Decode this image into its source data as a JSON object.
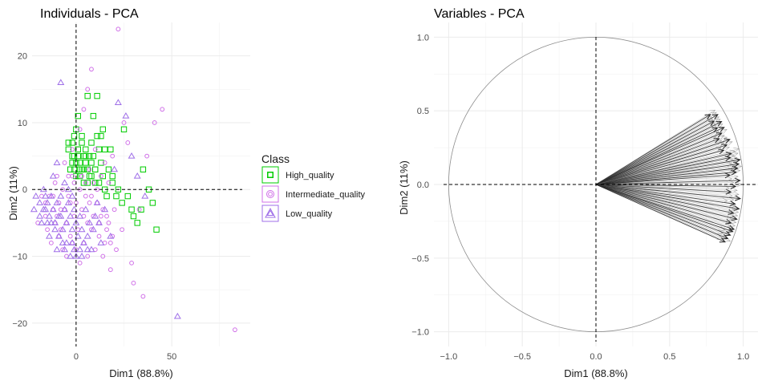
{
  "chart_data": [
    {
      "type": "scatter",
      "title": "Individuals - PCA",
      "xlabel": "Dim1 (88.8%)",
      "ylabel": "Dim2 (11%)",
      "xlim": [
        -23,
        91
      ],
      "ylim": [
        -23.5,
        25
      ],
      "xticks": [
        0,
        50
      ],
      "yticks": [
        -20,
        -10,
        0,
        10,
        20
      ],
      "grid": true,
      "reference_lines": {
        "x": 0,
        "y": 0
      },
      "legend": {
        "title": "Class",
        "placement": "right",
        "entries": [
          {
            "label": "High_quality",
            "color": "#00CC00",
            "shape": "square"
          },
          {
            "label": "Intermediate_quality",
            "color": "#D070E8",
            "shape": "circle"
          },
          {
            "label": "Low_quality",
            "color": "#9F6FE8",
            "shape": "triangle"
          }
        ]
      },
      "series": [
        {
          "name": "High_quality",
          "color": "#00CC00",
          "shape": "square",
          "points": [
            [
              -4,
              7
            ],
            [
              -4,
              6
            ],
            [
              -2,
              7
            ],
            [
              -2,
              5
            ],
            [
              -1,
              8
            ],
            [
              0,
              9
            ],
            [
              1,
              6
            ],
            [
              1,
              5
            ],
            [
              2,
              4
            ],
            [
              2,
              3
            ],
            [
              3,
              7
            ],
            [
              4,
              5
            ],
            [
              5,
              4
            ],
            [
              5,
              6
            ],
            [
              6,
              3
            ],
            [
              7,
              2
            ],
            [
              8,
              7
            ],
            [
              8,
              4
            ],
            [
              9,
              5
            ],
            [
              10,
              3
            ],
            [
              11,
              14
            ],
            [
              12,
              1
            ],
            [
              13,
              8
            ],
            [
              14,
              2
            ],
            [
              15,
              0
            ],
            [
              16,
              -1
            ],
            [
              18,
              6
            ],
            [
              19,
              1
            ],
            [
              21,
              -1
            ],
            [
              22,
              0
            ],
            [
              24,
              -2
            ],
            [
              25,
              9
            ],
            [
              27,
              -1
            ],
            [
              29,
              -3
            ],
            [
              30,
              -4
            ],
            [
              32,
              -5
            ],
            [
              34,
              -3
            ],
            [
              35,
              3
            ],
            [
              38,
              0
            ],
            [
              40,
              -2
            ],
            [
              42,
              -6
            ],
            [
              -3,
              3
            ],
            [
              -1,
              3
            ],
            [
              0,
              2
            ],
            [
              2,
              2
            ],
            [
              4,
              1
            ],
            [
              6,
              1
            ],
            [
              8,
              2
            ],
            [
              10,
              1
            ],
            [
              12,
              6
            ],
            [
              14,
              9
            ],
            [
              9,
              11
            ],
            [
              6,
              14
            ],
            [
              0,
              4
            ],
            [
              -2,
              4
            ],
            [
              1,
              6
            ],
            [
              3,
              3
            ],
            [
              5,
              5
            ],
            [
              7,
              5
            ],
            [
              11,
              8
            ],
            [
              13,
              4
            ],
            [
              15,
              6
            ],
            [
              17,
              3
            ],
            [
              19,
              2
            ],
            [
              3,
              8
            ],
            [
              1,
              11
            ],
            [
              -1,
              5
            ],
            [
              4,
              3
            ],
            [
              10,
              3
            ]
          ]
        },
        {
          "name": "Intermediate_quality",
          "color": "#D070E8",
          "shape": "circle",
          "points": [
            [
              -20,
              -5
            ],
            [
              -16,
              -2
            ],
            [
              -14,
              -1
            ],
            [
              -12,
              -3
            ],
            [
              -11,
              1
            ],
            [
              -10,
              -4
            ],
            [
              -9,
              -2
            ],
            [
              -8,
              -6
            ],
            [
              -7,
              0
            ],
            [
              -6,
              -3
            ],
            [
              -5,
              -5
            ],
            [
              -4,
              -1
            ],
            [
              -3,
              -7
            ],
            [
              -2,
              2
            ],
            [
              -1,
              -4
            ],
            [
              0,
              -2
            ],
            [
              1,
              -6
            ],
            [
              2,
              0
            ],
            [
              3,
              -3
            ],
            [
              4,
              -8
            ],
            [
              5,
              1
            ],
            [
              6,
              -5
            ],
            [
              7,
              3
            ],
            [
              8,
              -1
            ],
            [
              9,
              -4
            ],
            [
              10,
              6
            ],
            [
              11,
              -2
            ],
            [
              12,
              -7
            ],
            [
              13,
              2
            ],
            [
              14,
              -3
            ],
            [
              15,
              4
            ],
            [
              16,
              -6
            ],
            [
              17,
              1
            ],
            [
              18,
              -8
            ],
            [
              19,
              5
            ],
            [
              20,
              -3
            ],
            [
              22,
              24
            ],
            [
              24,
              -6
            ],
            [
              25,
              10
            ],
            [
              27,
              7
            ],
            [
              29,
              -11
            ],
            [
              30,
              -14
            ],
            [
              33,
              -3
            ],
            [
              35,
              -16
            ],
            [
              37,
              5
            ],
            [
              41,
              10
            ],
            [
              45,
              12
            ],
            [
              -15,
              -6
            ],
            [
              -13,
              -8
            ],
            [
              -11,
              -5
            ],
            [
              -9,
              -7
            ],
            [
              -7,
              -9
            ],
            [
              -5,
              -10
            ],
            [
              -3,
              -2
            ],
            [
              -2,
              -8
            ],
            [
              0,
              -9
            ],
            [
              2,
              -11
            ],
            [
              4,
              -4
            ],
            [
              6,
              -10
            ],
            [
              8,
              -6
            ],
            [
              10,
              -9
            ],
            [
              12,
              -5
            ],
            [
              14,
              -10
            ],
            [
              16,
              -4
            ],
            [
              18,
              -12
            ],
            [
              -18,
              -1
            ],
            [
              -10,
              2
            ],
            [
              -6,
              4
            ],
            [
              -2,
              6
            ],
            [
              2,
              9
            ],
            [
              4,
              12
            ],
            [
              6,
              15
            ],
            [
              8,
              18
            ],
            [
              -4,
              2
            ],
            [
              -8,
              -3
            ],
            [
              -12,
              -1
            ],
            [
              -16,
              -4
            ],
            [
              83,
              -21
            ],
            [
              -1,
              1
            ],
            [
              3,
              2
            ],
            [
              5,
              -1
            ],
            [
              7,
              -2
            ],
            [
              9,
              1
            ],
            [
              11,
              0
            ],
            [
              13,
              -4
            ],
            [
              15,
              -8
            ],
            [
              17,
              -5
            ],
            [
              19,
              -7
            ],
            [
              21,
              -9
            ]
          ]
        },
        {
          "name": "Low_quality",
          "color": "#9F6FE8",
          "shape": "triangle",
          "points": [
            [
              -22,
              -3
            ],
            [
              -19,
              -4
            ],
            [
              -17,
              0
            ],
            [
              -16,
              -1
            ],
            [
              -15,
              -2
            ],
            [
              -14,
              -4
            ],
            [
              -13,
              -1
            ],
            [
              -12,
              -3
            ],
            [
              -11,
              -5
            ],
            [
              -10,
              -2
            ],
            [
              -9,
              -4
            ],
            [
              -8,
              -1
            ],
            [
              -7,
              -6
            ],
            [
              -6,
              -3
            ],
            [
              -5,
              -5
            ],
            [
              -4,
              -2
            ],
            [
              -3,
              -4
            ],
            [
              -2,
              -6
            ],
            [
              -1,
              -3
            ],
            [
              0,
              -5
            ],
            [
              1,
              -7
            ],
            [
              2,
              -4
            ],
            [
              3,
              -6
            ],
            [
              4,
              -8
            ],
            [
              5,
              -3
            ],
            [
              6,
              -7
            ],
            [
              7,
              -5
            ],
            [
              8,
              -9
            ],
            [
              9,
              -6
            ],
            [
              10,
              -4
            ],
            [
              11,
              -2
            ],
            [
              12,
              -5
            ],
            [
              13,
              -8
            ],
            [
              -8,
              16
            ],
            [
              -10,
              4
            ],
            [
              -12,
              2
            ],
            [
              -6,
              1
            ],
            [
              -4,
              0
            ],
            [
              -2,
              -1
            ],
            [
              22,
              13
            ],
            [
              26,
              11
            ],
            [
              29,
              5
            ],
            [
              32,
              2
            ],
            [
              36,
              -1
            ],
            [
              53,
              -19
            ],
            [
              18,
              -7
            ],
            [
              15,
              -3
            ],
            [
              20,
              3
            ],
            [
              -13,
              -5
            ],
            [
              -9,
              -7
            ],
            [
              -5,
              -8
            ],
            [
              -1,
              -9
            ],
            [
              3,
              -10
            ],
            [
              0,
              -10
            ],
            [
              -3,
              -10
            ],
            [
              -7,
              -8
            ],
            [
              -11,
              -6
            ],
            [
              -15,
              -5
            ],
            [
              -17,
              -3
            ],
            [
              -19,
              -2
            ],
            [
              -18,
              -5
            ],
            [
              -14,
              -7
            ],
            [
              -10,
              -9
            ],
            [
              -6,
              -9
            ],
            [
              -2,
              -8
            ],
            [
              2,
              -9
            ],
            [
              6,
              -9
            ],
            [
              -21,
              -1
            ],
            [
              -16,
              -3
            ],
            [
              -8,
              -4
            ]
          ]
        }
      ]
    },
    {
      "type": "line",
      "title": "Variables - PCA",
      "xlabel": "Dim1 (88.8%)",
      "ylabel": "Dim2 (11%)",
      "xlim": [
        -1.1,
        1.1
      ],
      "ylim": [
        -1.1,
        1.1
      ],
      "xticks": [
        -1.0,
        -0.5,
        0.0,
        0.5,
        1.0
      ],
      "yticks": [
        -1.0,
        -0.5,
        0.0,
        0.5,
        1.0
      ],
      "grid": true,
      "reference_lines": {
        "x": 0,
        "y": 0
      },
      "circle_radius": 1.0,
      "vector_groups": [
        {
          "angle_min": 25,
          "angle_max": 32,
          "count": 14,
          "r_min": 0.91,
          "r_max": 0.99
        },
        {
          "angle_min": 15,
          "angle_max": 24,
          "count": 16,
          "r_min": 0.88,
          "r_max": 0.97
        },
        {
          "angle_min": 5,
          "angle_max": 14,
          "count": 18,
          "r_min": 0.93,
          "r_max": 1.0
        },
        {
          "angle_min": -8,
          "angle_max": 4,
          "count": 16,
          "r_min": 0.9,
          "r_max": 0.99
        },
        {
          "angle_min": -18,
          "angle_max": -9,
          "count": 14,
          "r_min": 0.93,
          "r_max": 0.99
        },
        {
          "angle_min": -24,
          "angle_max": -19,
          "count": 10,
          "r_min": 0.92,
          "r_max": 0.99
        }
      ]
    }
  ]
}
